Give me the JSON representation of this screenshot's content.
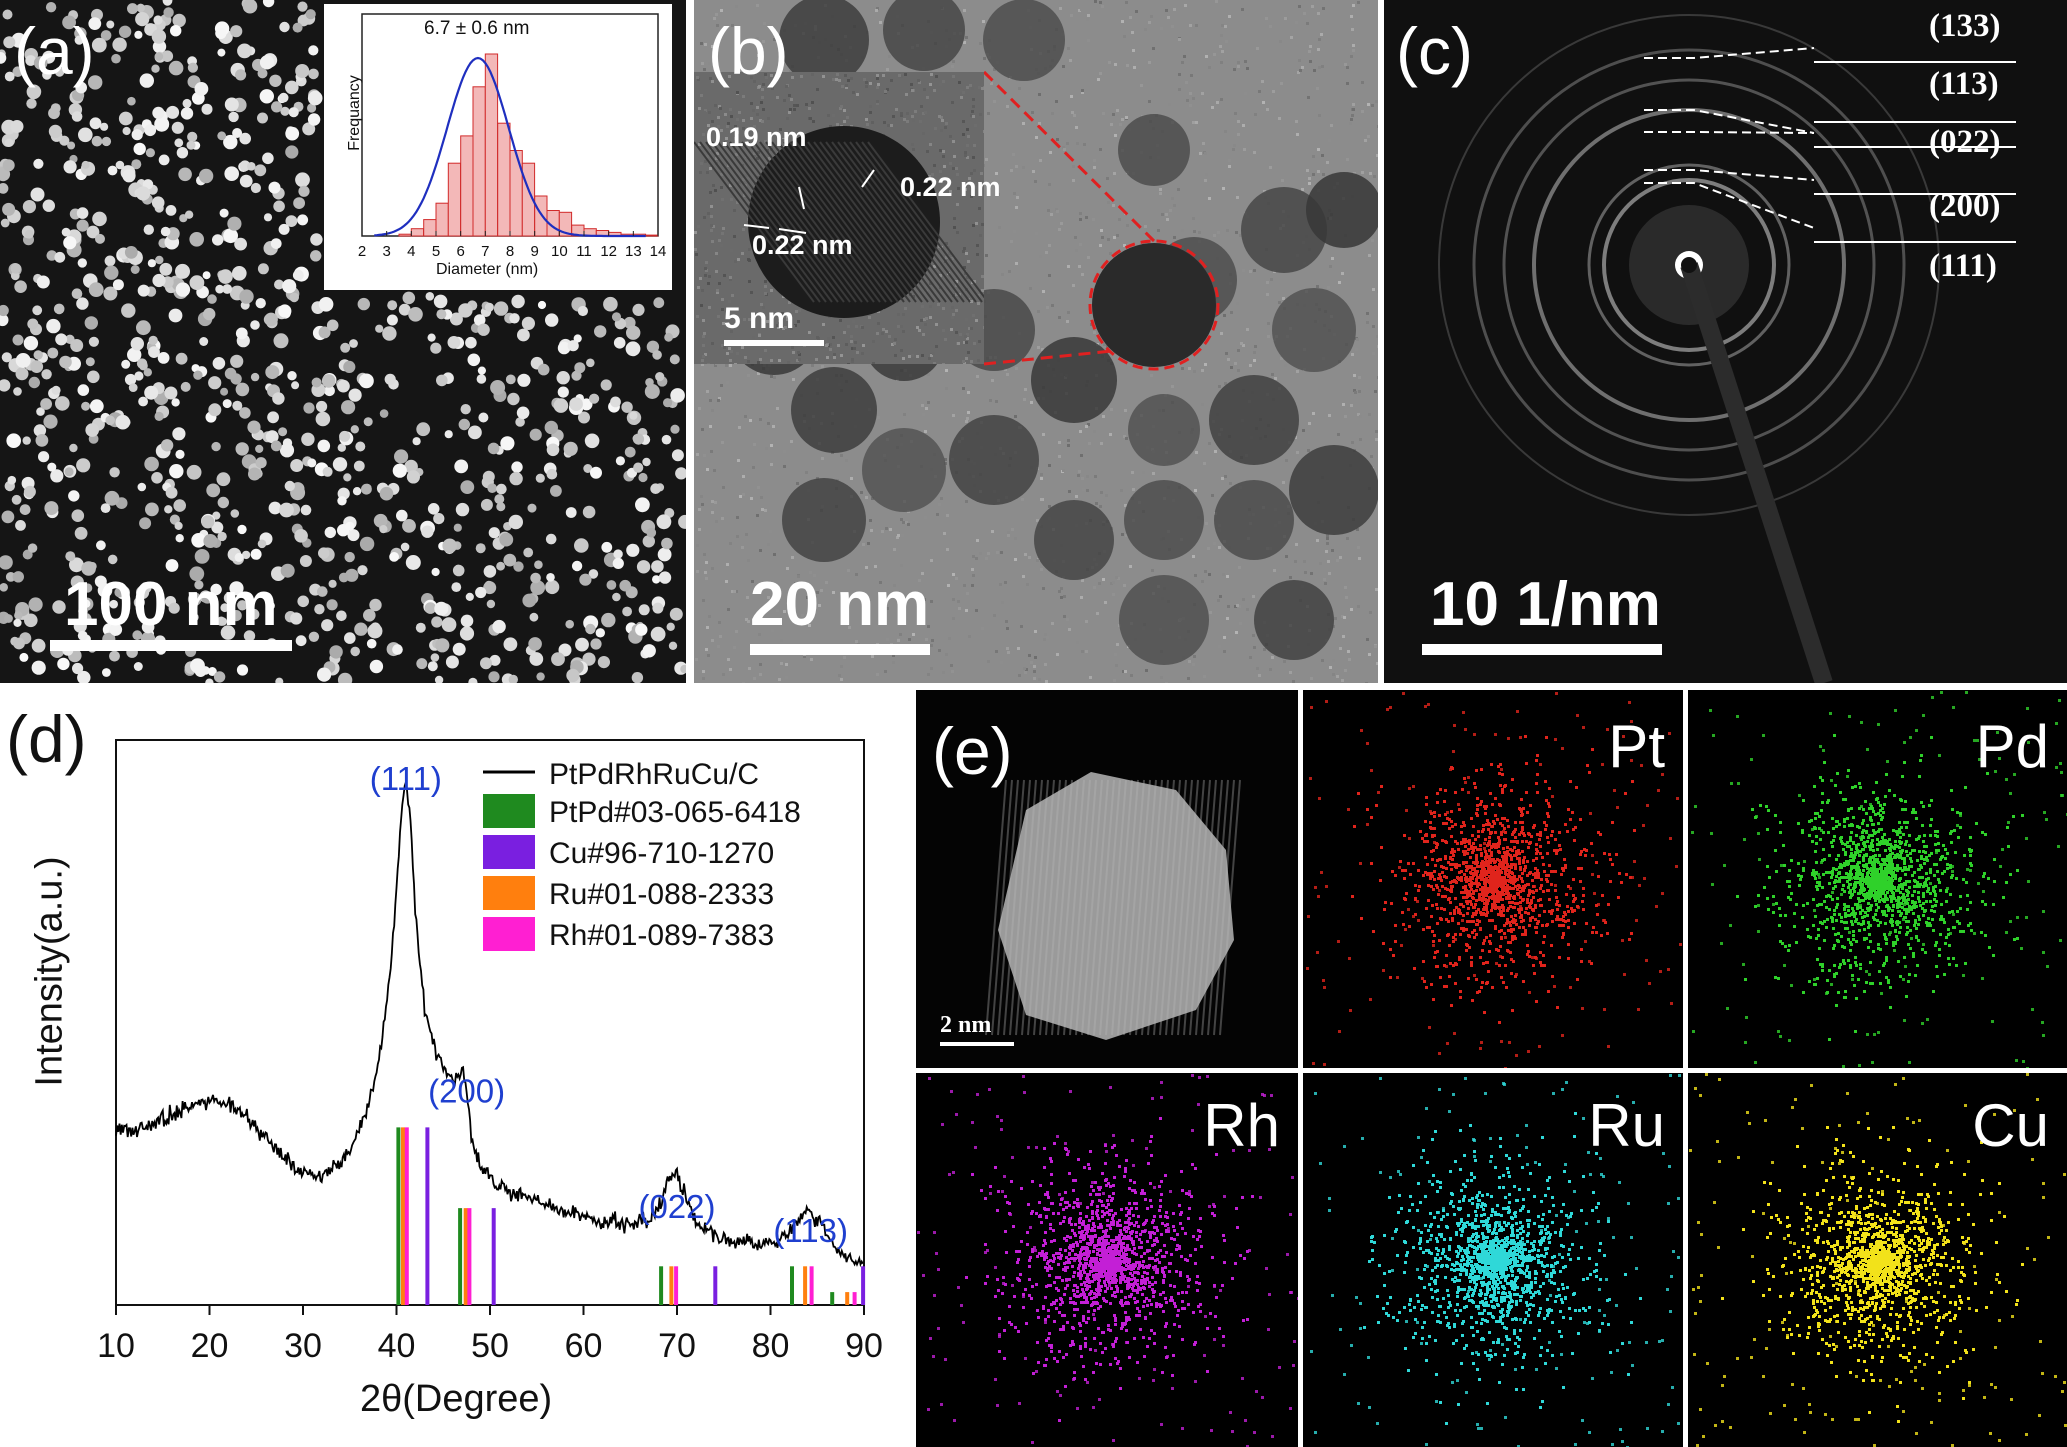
{
  "panels": {
    "a": {
      "label": "(a)",
      "scale": "100 nm",
      "histogram": {
        "title": "6.7 ± 0.6 nm",
        "ylabel": "Frequancy",
        "xlabel": "Diameter (nm)",
        "xticks": [
          "2",
          "3",
          "4",
          "5",
          "6",
          "7",
          "8",
          "9",
          "10",
          "11",
          "12",
          "13",
          "14"
        ]
      }
    },
    "b": {
      "label": "(b)",
      "scale": "20 nm",
      "inset_scale": "5 nm",
      "spacing_1": "0.19 nm",
      "spacing_2": "0.22 nm",
      "spacing_3": "0.22 nm"
    },
    "c": {
      "label": "(c)",
      "scale": "10 1/nm",
      "rings": [
        "(133)",
        "(113)",
        "(022)",
        "(200)",
        "(111)"
      ]
    },
    "d": {
      "label": "(d)"
    },
    "e": {
      "label": "(e)",
      "haadf_scale": "2 nm",
      "maps": [
        {
          "element": "Pt",
          "color": "#e0241c"
        },
        {
          "element": "Pd",
          "color": "#2fd12a"
        },
        {
          "element": "Rh",
          "color": "#c31fd6"
        },
        {
          "element": "Ru",
          "color": "#2fd8d8"
        },
        {
          "element": "Cu",
          "color": "#f2e21a"
        }
      ]
    }
  },
  "chart_data": {
    "type": "line",
    "xlabel": "2θ(Degree)",
    "ylabel": "Intensity(a.u.)",
    "xlim": [
      10,
      90
    ],
    "xticks": [
      10,
      20,
      30,
      40,
      50,
      60,
      70,
      80,
      90
    ],
    "legend_position": "top-right",
    "series": [
      {
        "name": "PtPdRhRuCu/C",
        "color": "#000000",
        "x": [
          10,
          12,
          14,
          16,
          18,
          20,
          22,
          24,
          26,
          28,
          30,
          32,
          34,
          35,
          36,
          37,
          38,
          39,
          40,
          40.5,
          41,
          41.5,
          42,
          43,
          44,
          45,
          46,
          47,
          47.5,
          48,
          49,
          50,
          52,
          55,
          58,
          62,
          65,
          67,
          68,
          69,
          70,
          71,
          72,
          74,
          76,
          78,
          80,
          82,
          83,
          84,
          85,
          86,
          87,
          88,
          90
        ],
        "values": [
          0.55,
          0.54,
          0.56,
          0.59,
          0.62,
          0.64,
          0.62,
          0.58,
          0.52,
          0.46,
          0.41,
          0.4,
          0.44,
          0.48,
          0.54,
          0.62,
          0.74,
          0.92,
          1.28,
          1.52,
          1.62,
          1.5,
          1.22,
          0.92,
          0.8,
          0.74,
          0.7,
          0.72,
          0.67,
          0.52,
          0.43,
          0.39,
          0.35,
          0.32,
          0.29,
          0.26,
          0.25,
          0.26,
          0.31,
          0.38,
          0.41,
          0.33,
          0.26,
          0.22,
          0.2,
          0.19,
          0.19,
          0.22,
          0.26,
          0.3,
          0.27,
          0.21,
          0.18,
          0.15,
          0.13
        ]
      }
    ],
    "reference_patterns": [
      {
        "name": "PtPd#03-065-6418",
        "color": "#1f8a1f",
        "peaks": [
          [
            40.2,
            0.55
          ],
          [
            46.8,
            0.3
          ],
          [
            68.3,
            0.12
          ],
          [
            82.3,
            0.12
          ],
          [
            86.6,
            0.04
          ]
        ]
      },
      {
        "name": "Cu#96-710-1270",
        "color": "#7a1fe0",
        "peaks": [
          [
            43.3,
            0.55
          ],
          [
            50.4,
            0.3
          ],
          [
            74.1,
            0.12
          ],
          [
            89.9,
            0.12
          ]
        ]
      },
      {
        "name": "Ru#01-088-2333",
        "color": "#ff7f0e",
        "peaks": [
          [
            40.7,
            0.55
          ],
          [
            47.4,
            0.3
          ],
          [
            69.4,
            0.12
          ],
          [
            83.7,
            0.12
          ],
          [
            88.2,
            0.04
          ]
        ]
      },
      {
        "name": "Rh#01-089-7383",
        "color": "#ff1fd2",
        "peaks": [
          [
            41.1,
            0.55
          ],
          [
            47.8,
            0.3
          ],
          [
            69.9,
            0.12
          ],
          [
            84.4,
            0.12
          ],
          [
            89.0,
            0.04
          ]
        ]
      }
    ],
    "annotations": [
      {
        "text": "(111)",
        "x": 41.0,
        "color": "#1f3fcf"
      },
      {
        "text": "(200)",
        "x": 47.5,
        "color": "#1f3fcf"
      },
      {
        "text": "(022)",
        "x": 70.0,
        "color": "#1f3fcf"
      },
      {
        "text": "(113)",
        "x": 84.3,
        "color": "#1f3fcf"
      }
    ]
  }
}
